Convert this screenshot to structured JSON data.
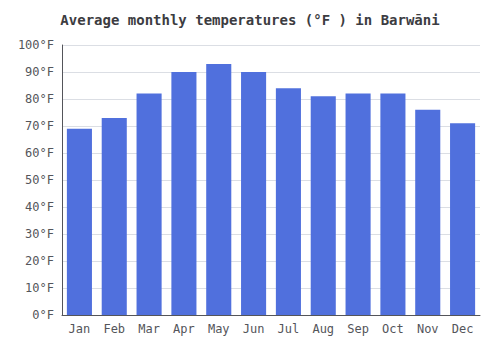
{
  "chart_data": {
    "type": "bar",
    "title": "Average monthly temperatures (°F ) in Barwāni",
    "categories": [
      "Jan",
      "Feb",
      "Mar",
      "Apr",
      "May",
      "Jun",
      "Jul",
      "Aug",
      "Sep",
      "Oct",
      "Nov",
      "Dec"
    ],
    "values": [
      69,
      73,
      82,
      90,
      93,
      90,
      84,
      81,
      82,
      82,
      76,
      71
    ],
    "ylim": [
      0,
      100
    ],
    "yticks": [
      {
        "value": 0,
        "label": "0°F"
      },
      {
        "value": 10,
        "label": "10°F"
      },
      {
        "value": 20,
        "label": "20°F"
      },
      {
        "value": 30,
        "label": "30°F"
      },
      {
        "value": 40,
        "label": "40°F"
      },
      {
        "value": 50,
        "label": "50°F"
      },
      {
        "value": 60,
        "label": "60°F"
      },
      {
        "value": 70,
        "label": "70°F"
      },
      {
        "value": 80,
        "label": "80°F"
      },
      {
        "value": 90,
        "label": "90°F"
      },
      {
        "value": 100,
        "label": "100°F"
      }
    ],
    "grid": true
  }
}
